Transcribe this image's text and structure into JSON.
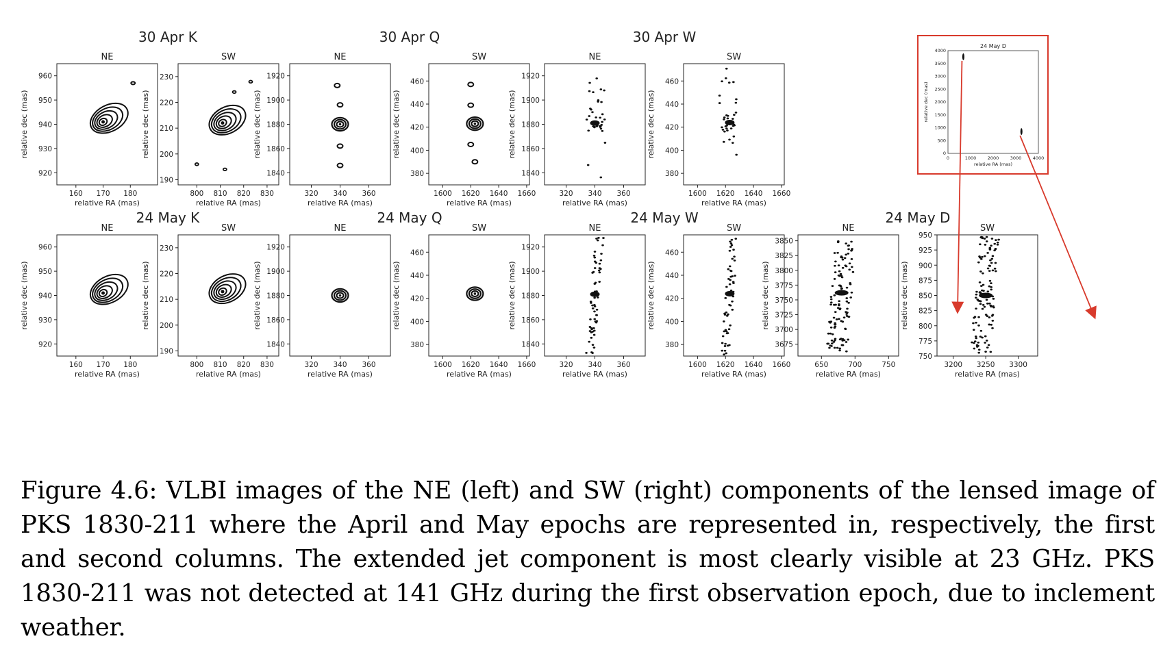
{
  "figure": {
    "groups": [
      {
        "title": "30 Apr K",
        "panels": [
          {
            "title": "NE",
            "xlabel": "relative RA (mas)",
            "ylabel": "relative dec (mas)",
            "xticks": [
              "160",
              "170",
              "180"
            ],
            "yticks": [
              "960",
              "950",
              "940",
              "930",
              "920"
            ],
            "xlim": [
              153,
              190
            ],
            "ylim": [
              915,
              965
            ],
            "style": "contour",
            "source": {
              "x": 170,
              "y": 941
            }
          },
          {
            "title": "SW",
            "xlabel": "relative RA (mas)",
            "ylabel": "relative dec (mas)",
            "xticks": [
              "800",
              "810",
              "820",
              "830"
            ],
            "yticks": [
              "230",
              "220",
              "210",
              "200",
              "190"
            ],
            "xlim": [
              792,
              835
            ],
            "ylim": [
              188,
              235
            ],
            "style": "contour",
            "source": {
              "x": 811,
              "y": 212
            }
          }
        ]
      },
      {
        "title": "30 Apr Q",
        "panels": [
          {
            "title": "NE",
            "xlabel": "relative RA (mas)",
            "ylabel": "relative dec (mas)",
            "xticks": [
              "320",
              "340",
              "360"
            ],
            "yticks": [
              "1920",
              "1900",
              "1880",
              "1860",
              "1840"
            ],
            "xlim": [
              305,
              375
            ],
            "ylim": [
              1830,
              1930
            ],
            "style": "contour",
            "source": {
              "x": 340,
              "y": 1880
            }
          },
          {
            "title": "SW",
            "xlabel": "relative RA (mas)",
            "ylabel": "relative dec (mas)",
            "xticks": [
              "1600",
              "1620",
              "1640",
              "1660"
            ],
            "yticks": [
              "460",
              "440",
              "420",
              "400",
              "380"
            ],
            "xlim": [
              1590,
              1662
            ],
            "ylim": [
              370,
              475
            ],
            "style": "contour",
            "source": {
              "x": 1623,
              "y": 423
            }
          }
        ]
      },
      {
        "title": "30 Apr W",
        "panels": [
          {
            "title": "NE",
            "xlabel": "relative RA (mas)",
            "ylabel": "relative dec (mas)",
            "xticks": [
              "320",
              "340",
              "360"
            ],
            "yticks": [
              "1920",
              "1900",
              "1880",
              "1860",
              "1840"
            ],
            "xlim": [
              305,
              375
            ],
            "ylim": [
              1830,
              1930
            ],
            "style": "dots",
            "source": {
              "x": 340,
              "y": 1881
            }
          },
          {
            "title": "SW",
            "xlabel": "relative RA (mas)",
            "ylabel": "relative dec (mas)",
            "xticks": [
              "1600",
              "1620",
              "1640",
              "1660"
            ],
            "yticks": [
              "460",
              "440",
              "420",
              "400",
              "380"
            ],
            "xlim": [
              1590,
              1662
            ],
            "ylim": [
              370,
              475
            ],
            "style": "dots",
            "source": {
              "x": 1623,
              "y": 424
            }
          }
        ]
      },
      {
        "title": "24 May K",
        "panels": [
          {
            "title": "NE",
            "xlabel": "relative RA (mas)",
            "ylabel": "relative dec (mas)",
            "xticks": [
              "160",
              "170",
              "180"
            ],
            "yticks": [
              "960",
              "950",
              "940",
              "930",
              "920"
            ],
            "xlim": [
              153,
              190
            ],
            "ylim": [
              915,
              965
            ],
            "style": "contour",
            "source": {
              "x": 170,
              "y": 941
            }
          },
          {
            "title": "SW",
            "xlabel": "relative RA (mas)",
            "ylabel": "relative dec (mas)",
            "xticks": [
              "800",
              "810",
              "820",
              "830"
            ],
            "yticks": [
              "230",
              "220",
              "210",
              "200",
              "190"
            ],
            "xlim": [
              792,
              835
            ],
            "ylim": [
              188,
              235
            ],
            "style": "contour",
            "source": {
              "x": 811,
              "y": 213
            }
          }
        ]
      },
      {
        "title": "24 May Q",
        "panels": [
          {
            "title": "NE",
            "xlabel": "relative RA (mas)",
            "ylabel": "relative dec (mas)",
            "xticks": [
              "320",
              "340",
              "360"
            ],
            "yticks": [
              "1920",
              "1900",
              "1880",
              "1860",
              "1840"
            ],
            "xlim": [
              305,
              375
            ],
            "ylim": [
              1830,
              1930
            ],
            "style": "contour",
            "source": {
              "x": 340,
              "y": 1880
            }
          },
          {
            "title": "SW",
            "xlabel": "relative RA (mas)",
            "ylabel": "relative dec (mas)",
            "xticks": [
              "1600",
              "1620",
              "1640",
              "1660"
            ],
            "yticks": [
              "460",
              "440",
              "420",
              "400",
              "380"
            ],
            "xlim": [
              1590,
              1662
            ],
            "ylim": [
              370,
              475
            ],
            "style": "contour",
            "source": {
              "x": 1623,
              "y": 424
            }
          }
        ]
      },
      {
        "title": "24 May W",
        "panels": [
          {
            "title": "NE",
            "xlabel": "relative RA (mas)",
            "ylabel": "relative dec (mas)",
            "xticks": [
              "320",
              "340",
              "360"
            ],
            "yticks": [
              "1920",
              "1900",
              "1880",
              "1860",
              "1840"
            ],
            "xlim": [
              305,
              375
            ],
            "ylim": [
              1830,
              1930
            ],
            "style": "dots",
            "source": {
              "x": 340,
              "y": 1881
            }
          },
          {
            "title": "SW",
            "xlabel": "relative RA (mas)",
            "ylabel": "relative dec (mas)",
            "xticks": [
              "1600",
              "1620",
              "1640",
              "1660"
            ],
            "yticks": [
              "460",
              "440",
              "420",
              "400",
              "380"
            ],
            "xlim": [
              1590,
              1662
            ],
            "ylim": [
              370,
              475
            ],
            "style": "dots",
            "source": {
              "x": 1623,
              "y": 424
            }
          }
        ]
      },
      {
        "title": "24 May D",
        "panels": [
          {
            "title": "NE",
            "xlabel": "relative RA (mas)",
            "ylabel": "relative dec (mas)",
            "xticks": [
              "650",
              "700",
              "750"
            ],
            "yticks": [
              "3850",
              "3825",
              "3800",
              "3775",
              "3750",
              "3725",
              "3700",
              "3675"
            ],
            "xlim": [
              615,
              765
            ],
            "ylim": [
              3655,
              3860
            ],
            "style": "dots",
            "source": {
              "x": 680,
              "y": 3762
            }
          },
          {
            "title": "SW",
            "xlabel": "relative RA (mas)",
            "ylabel": "relative dec (mas)",
            "xticks": [
              "3200",
              "3250",
              "3300"
            ],
            "yticks": [
              "950",
              "925",
              "900",
              "875",
              "850",
              "825",
              "800",
              "775",
              "750"
            ],
            "xlim": [
              3175,
              3330
            ],
            "ylim": [
              750,
              950
            ],
            "style": "dots",
            "source": {
              "x": 3250,
              "y": 850
            }
          }
        ]
      }
    ],
    "inset": {
      "title": "24 May D",
      "xlabel": "relative RA (mas)",
      "ylabel": "relative dec (mas)",
      "xticks": [
        "0",
        "1000",
        "2000",
        "3000",
        "4000"
      ],
      "yticks": [
        "4000",
        "3500",
        "3000",
        "2500",
        "2000",
        "1500",
        "1000",
        "500",
        "0"
      ],
      "xlim": [
        0,
        4000
      ],
      "ylim": [
        0,
        4000
      ],
      "points": [
        {
          "x": 680,
          "y": 3762
        },
        {
          "x": 3250,
          "y": 850
        }
      ],
      "border_color": "#d83a2c",
      "arrow_color": "#d83a2c"
    }
  },
  "caption": "Figure 4.6: VLBI images of the NE (left) and SW (right) components of the lensed image of PKS 1830-211 where the April and May epochs are represented in, respectively, the first and second columns. The extended jet component is most clearly visible at 23 GHz. PKS 1830-211 was not detected at 141 GHz during the first observation epoch, due to inclement weather."
}
